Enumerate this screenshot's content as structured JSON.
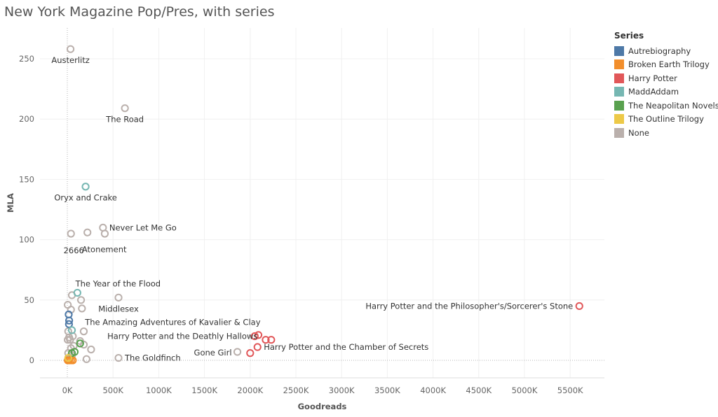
{
  "title": "New York Magazine Pop/Pres, with series",
  "legend": {
    "title": "Series",
    "items": [
      {
        "label": "Autrebiography",
        "color": "#4e79a7"
      },
      {
        "label": "Broken Earth Trilogy",
        "color": "#f28e2b"
      },
      {
        "label": "Harry Potter",
        "color": "#e15759"
      },
      {
        "label": "MaddAddam",
        "color": "#76b7b2"
      },
      {
        "label": "The Neapolitan Novels",
        "color": "#59a14f"
      },
      {
        "label": "The Outline Trilogy",
        "color": "#edc948"
      },
      {
        "label": "None",
        "color": "#bab0ac"
      }
    ]
  },
  "chart_data": {
    "type": "scatter",
    "title": "New York Magazine Pop/Pres, with series",
    "xlabel": "Goodreads",
    "ylabel": "MLA",
    "xlim": [
      -220,
      5900
    ],
    "ylim": [
      -15,
      268
    ],
    "x_unit": "K",
    "x_ticks": [
      0,
      500,
      1000,
      1500,
      2000,
      2500,
      3000,
      3500,
      4000,
      4500,
      5000,
      5500
    ],
    "x_tick_labels": [
      "0K",
      "500K",
      "1000K",
      "1500K",
      "2000K",
      "2500K",
      "3000K",
      "3500K",
      "4000K",
      "4500K",
      "5000K",
      "5500K"
    ],
    "y_ticks": [
      0,
      50,
      100,
      150,
      200,
      250
    ],
    "y_tick_labels": [
      "0",
      "50",
      "100",
      "150",
      "200",
      "250"
    ],
    "grid": true,
    "legend_position": "right",
    "series": [
      {
        "name": "Autrebiography",
        "color": "#4e79a7",
        "points": [
          {
            "x": 15,
            "y": 38
          },
          {
            "x": 20,
            "y": 33
          },
          {
            "x": 18,
            "y": 30
          }
        ]
      },
      {
        "name": "Broken Earth Trilogy",
        "color": "#f28e2b",
        "points": [
          {
            "x": 5,
            "y": 0
          },
          {
            "x": 20,
            "y": 0
          },
          {
            "x": 40,
            "y": 0
          },
          {
            "x": 60,
            "y": 0
          }
        ]
      },
      {
        "name": "Harry Potter",
        "color": "#e15759",
        "points": [
          {
            "x": 5600,
            "y": 45,
            "label": "Harry Potter and the Philosopher's/Sorcerer's Stone"
          },
          {
            "x": 2090,
            "y": 21
          },
          {
            "x": 2050,
            "y": 20,
            "label": "Harry Potter and the Deathly Hallows"
          },
          {
            "x": 2170,
            "y": 17
          },
          {
            "x": 2230,
            "y": 17
          },
          {
            "x": 2080,
            "y": 11,
            "label": "Harry Potter and the Chamber of Secrets"
          },
          {
            "x": 2000,
            "y": 6
          }
        ]
      },
      {
        "name": "MaddAddam",
        "color": "#76b7b2",
        "points": [
          {
            "x": 200,
            "y": 144,
            "label": "Oryx and Crake"
          },
          {
            "x": 110,
            "y": 56,
            "label": "The Year of the Flood"
          },
          {
            "x": 50,
            "y": 25
          }
        ]
      },
      {
        "name": "The Neapolitan Novels",
        "color": "#59a14f",
        "points": [
          {
            "x": 140,
            "y": 14
          },
          {
            "x": 80,
            "y": 7
          },
          {
            "x": 50,
            "y": 6
          }
        ]
      },
      {
        "name": "The Outline Trilogy",
        "color": "#edc948",
        "points": [
          {
            "x": 10,
            "y": 2
          }
        ]
      },
      {
        "name": "None",
        "color": "#bab0ac",
        "points": [
          {
            "x": 35,
            "y": 258,
            "label": "Austerlitz"
          },
          {
            "x": 630,
            "y": 209,
            "label": "The Road"
          },
          {
            "x": 390,
            "y": 110,
            "label": "Never Let Me Go"
          },
          {
            "x": 410,
            "y": 105
          },
          {
            "x": 220,
            "y": 106,
            "label": "Atonement"
          },
          {
            "x": 40,
            "y": 105,
            "label": "2666"
          },
          {
            "x": 560,
            "y": 52,
            "label": "Middlesex"
          },
          {
            "x": 50,
            "y": 54
          },
          {
            "x": 5,
            "y": 46
          },
          {
            "x": 150,
            "y": 50
          },
          {
            "x": 160,
            "y": 43
          },
          {
            "x": 40,
            "y": 42,
            "label": "The Amazing Adventures of Kavalier & Clay"
          },
          {
            "x": 180,
            "y": 24
          },
          {
            "x": 10,
            "y": 24
          },
          {
            "x": 60,
            "y": 20
          },
          {
            "x": 20,
            "y": 19
          },
          {
            "x": 30,
            "y": 17
          },
          {
            "x": 5,
            "y": 17
          },
          {
            "x": 140,
            "y": 16
          },
          {
            "x": 180,
            "y": 13
          },
          {
            "x": 260,
            "y": 9
          },
          {
            "x": 40,
            "y": 10
          },
          {
            "x": 70,
            "y": 12
          },
          {
            "x": 10,
            "y": 6
          },
          {
            "x": 50,
            "y": 4
          },
          {
            "x": 20,
            "y": 2
          },
          {
            "x": 210,
            "y": 1
          },
          {
            "x": 1860,
            "y": 7,
            "label": "Gone Girl"
          },
          {
            "x": 560,
            "y": 2,
            "label": "The Goldfinch"
          }
        ]
      }
    ]
  }
}
